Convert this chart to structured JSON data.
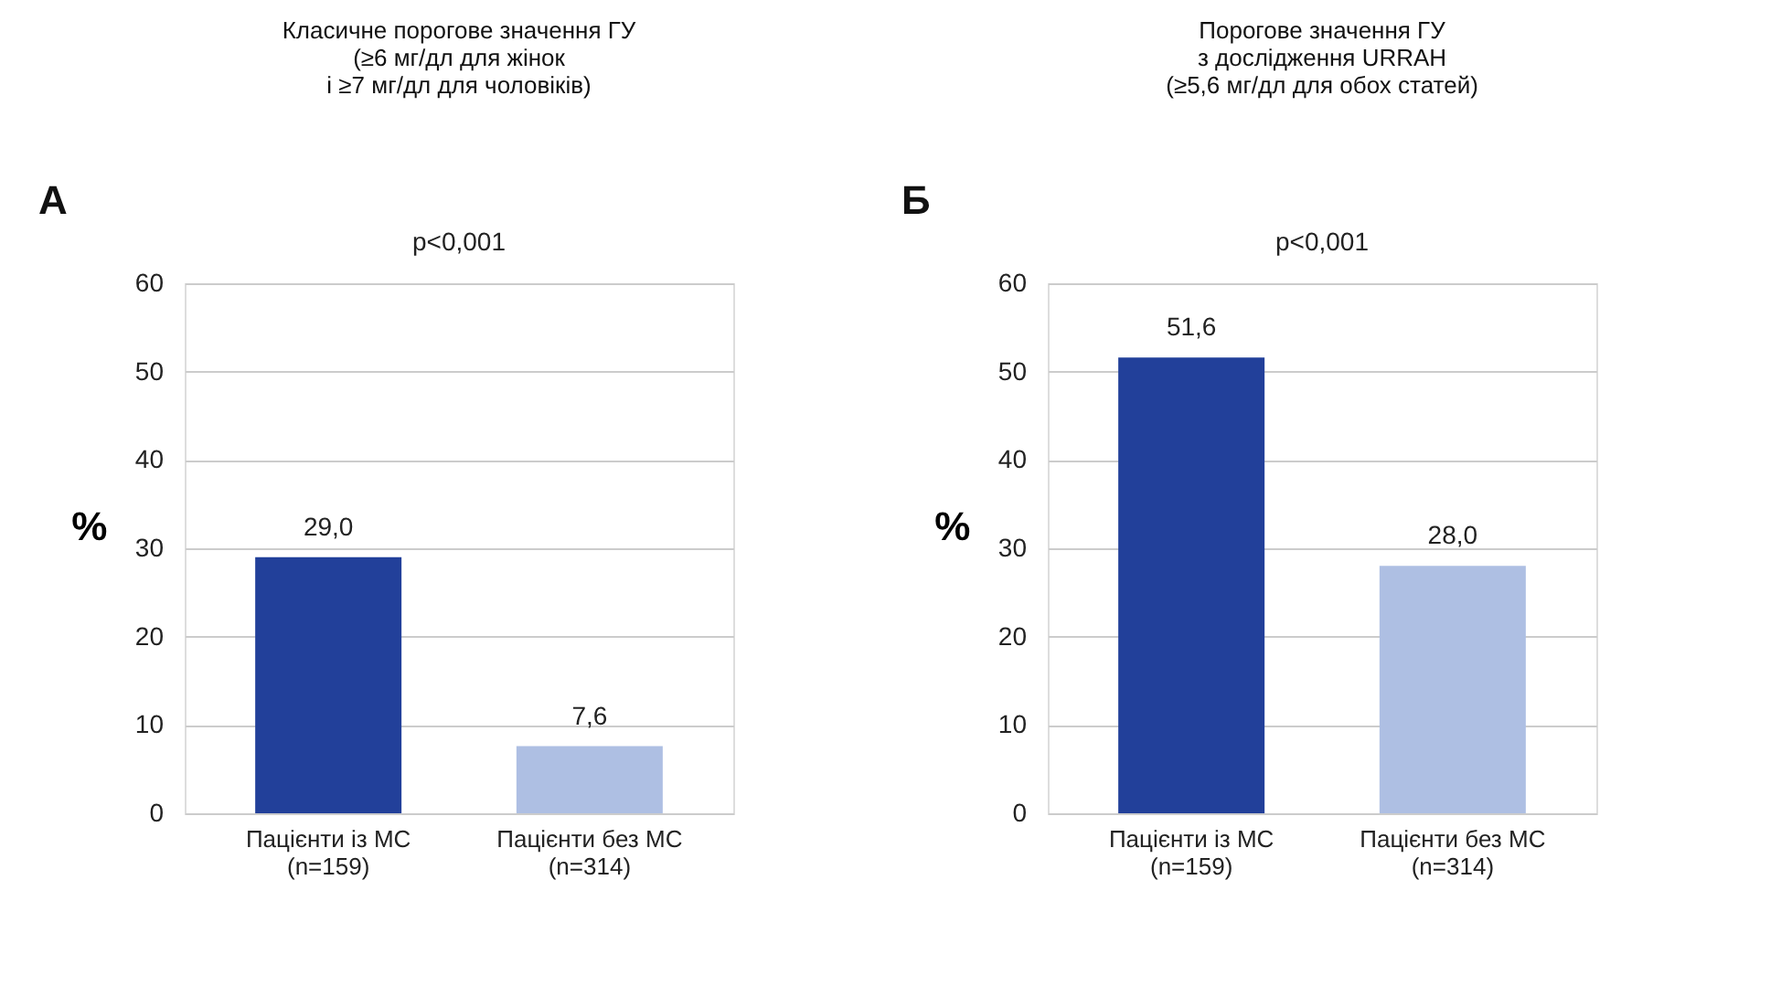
{
  "chart_data": [
    {
      "type": "bar",
      "title": "Класичне порогове значення ГУ\n(≥6 мг/дл для жінок\nі ≥7 мг/дл для чоловіків)",
      "ylabel": "%",
      "annotations": [
        "А",
        "p<0,001"
      ],
      "categories": [
        "Пацієнти із МС\n(n=159)",
        "Пацієнти без МС\n(n=314)"
      ],
      "values": [
        29.0,
        7.6
      ],
      "colors": [
        "#22409a",
        "#aebfe3"
      ],
      "value_labels": [
        "29,0",
        "7,6"
      ],
      "ylim": [
        0,
        60
      ],
      "yticks": [
        0,
        10,
        20,
        30,
        40,
        50,
        60
      ],
      "grid": "y"
    },
    {
      "type": "bar",
      "title": "Порогове значення ГУ\nз дослідження URRAH\n(≥5,6 мг/дл для обох статей)",
      "ylabel": "%",
      "annotations": [
        "Б",
        "p<0,001"
      ],
      "categories": [
        "Пацієнти із МС\n(n=159)",
        "Пацієнти без МС\n(n=314)"
      ],
      "values": [
        51.6,
        28.0
      ],
      "colors": [
        "#22409a",
        "#aebfe3"
      ],
      "value_labels": [
        "51,6",
        "28,0"
      ],
      "ylim": [
        0,
        60
      ],
      "yticks": [
        0,
        10,
        20,
        30,
        40,
        50,
        60
      ],
      "grid": "y"
    }
  ]
}
